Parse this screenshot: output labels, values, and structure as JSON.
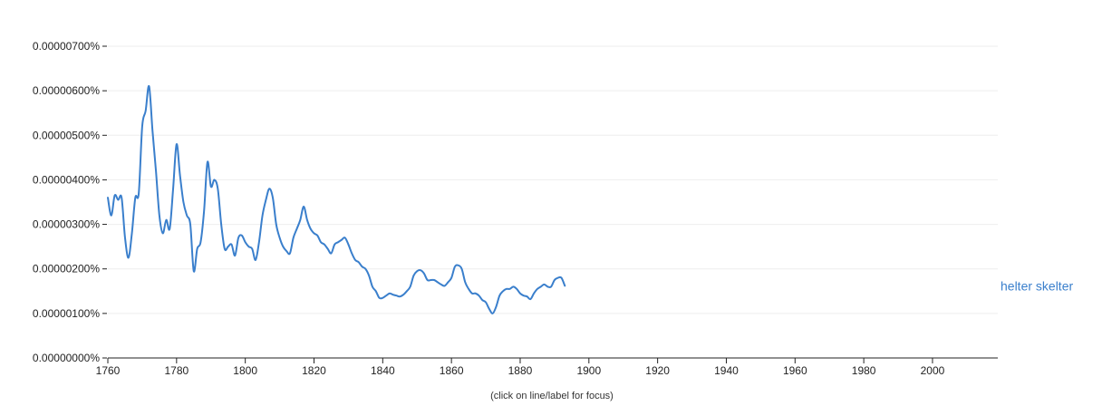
{
  "chart_data": {
    "type": "line",
    "xlim": [
      1760,
      2019
    ],
    "ylim": [
      0,
      7e-08
    ],
    "y_ticks": [
      {
        "value": 0,
        "label": "0.00000000%"
      },
      {
        "value": 1e-08,
        "label": "0.00000100%"
      },
      {
        "value": 2e-08,
        "label": "0.00000200%"
      },
      {
        "value": 3e-08,
        "label": "0.00000300%"
      },
      {
        "value": 4e-08,
        "label": "0.00000400%"
      },
      {
        "value": 5e-08,
        "label": "0.00000500%"
      },
      {
        "value": 6e-08,
        "label": "0.00000600%"
      },
      {
        "value": 7e-08,
        "label": "0.00000700%"
      }
    ],
    "x_ticks": [
      {
        "value": 1760,
        "label": "1760"
      },
      {
        "value": 1780,
        "label": "1780"
      },
      {
        "value": 1800,
        "label": "1800"
      },
      {
        "value": 1820,
        "label": "1820"
      },
      {
        "value": 1840,
        "label": "1840"
      },
      {
        "value": 1860,
        "label": "1860"
      },
      {
        "value": 1880,
        "label": "1880"
      },
      {
        "value": 1900,
        "label": "1900"
      },
      {
        "value": 1920,
        "label": "1920"
      },
      {
        "value": 1940,
        "label": "1940"
      },
      {
        "value": 1960,
        "label": "1960"
      },
      {
        "value": 1980,
        "label": "1980"
      },
      {
        "value": 2000,
        "label": "2000"
      }
    ],
    "grid": true,
    "series": [
      {
        "name": "helter skelter",
        "color": "#3a7fcc",
        "points": [
          [
            1760,
            3.6e-08
          ],
          [
            1761,
            3.2e-08
          ],
          [
            1762,
            3.65e-08
          ],
          [
            1763,
            3.55e-08
          ],
          [
            1764,
            3.6e-08
          ],
          [
            1765,
            2.7e-08
          ],
          [
            1766,
            2.25e-08
          ],
          [
            1767,
            2.8e-08
          ],
          [
            1768,
            3.6e-08
          ],
          [
            1769,
            3.7e-08
          ],
          [
            1770,
            5.2e-08
          ],
          [
            1771,
            5.55e-08
          ],
          [
            1772,
            6.1e-08
          ],
          [
            1773,
            5.1e-08
          ],
          [
            1774,
            4.2e-08
          ],
          [
            1775,
            3.2e-08
          ],
          [
            1776,
            2.8e-08
          ],
          [
            1777,
            3.1e-08
          ],
          [
            1778,
            2.9e-08
          ],
          [
            1779,
            3.8e-08
          ],
          [
            1780,
            4.8e-08
          ],
          [
            1781,
            4.1e-08
          ],
          [
            1782,
            3.5e-08
          ],
          [
            1783,
            3.2e-08
          ],
          [
            1784,
            3e-08
          ],
          [
            1785,
            1.95e-08
          ],
          [
            1786,
            2.45e-08
          ],
          [
            1787,
            2.6e-08
          ],
          [
            1788,
            3.3e-08
          ],
          [
            1789,
            4.4e-08
          ],
          [
            1790,
            3.85e-08
          ],
          [
            1791,
            4e-08
          ],
          [
            1792,
            3.8e-08
          ],
          [
            1793,
            3e-08
          ],
          [
            1794,
            2.45e-08
          ],
          [
            1795,
            2.5e-08
          ],
          [
            1796,
            2.55e-08
          ],
          [
            1797,
            2.3e-08
          ],
          [
            1798,
            2.7e-08
          ],
          [
            1799,
            2.75e-08
          ],
          [
            1800,
            2.6e-08
          ],
          [
            1801,
            2.5e-08
          ],
          [
            1802,
            2.45e-08
          ],
          [
            1803,
            2.2e-08
          ],
          [
            1804,
            2.6e-08
          ],
          [
            1805,
            3.2e-08
          ],
          [
            1806,
            3.55e-08
          ],
          [
            1807,
            3.8e-08
          ],
          [
            1808,
            3.6e-08
          ],
          [
            1809,
            3e-08
          ],
          [
            1810,
            2.7e-08
          ],
          [
            1811,
            2.5e-08
          ],
          [
            1812,
            2.4e-08
          ],
          [
            1813,
            2.35e-08
          ],
          [
            1814,
            2.7e-08
          ],
          [
            1815,
            2.9e-08
          ],
          [
            1816,
            3.1e-08
          ],
          [
            1817,
            3.4e-08
          ],
          [
            1818,
            3.1e-08
          ],
          [
            1819,
            2.9e-08
          ],
          [
            1820,
            2.8e-08
          ],
          [
            1821,
            2.75e-08
          ],
          [
            1822,
            2.6e-08
          ],
          [
            1823,
            2.55e-08
          ],
          [
            1824,
            2.45e-08
          ],
          [
            1825,
            2.35e-08
          ],
          [
            1826,
            2.55e-08
          ],
          [
            1827,
            2.6e-08
          ],
          [
            1828,
            2.65e-08
          ],
          [
            1829,
            2.7e-08
          ],
          [
            1830,
            2.55e-08
          ],
          [
            1831,
            2.35e-08
          ],
          [
            1832,
            2.2e-08
          ],
          [
            1833,
            2.15e-08
          ],
          [
            1834,
            2.05e-08
          ],
          [
            1835,
            2e-08
          ],
          [
            1836,
            1.85e-08
          ],
          [
            1837,
            1.6e-08
          ],
          [
            1838,
            1.5e-08
          ],
          [
            1839,
            1.35e-08
          ],
          [
            1840,
            1.35e-08
          ],
          [
            1841,
            1.4e-08
          ],
          [
            1842,
            1.45e-08
          ],
          [
            1843,
            1.42e-08
          ],
          [
            1844,
            1.4e-08
          ],
          [
            1845,
            1.38e-08
          ],
          [
            1846,
            1.42e-08
          ],
          [
            1847,
            1.5e-08
          ],
          [
            1848,
            1.6e-08
          ],
          [
            1849,
            1.85e-08
          ],
          [
            1850,
            1.95e-08
          ],
          [
            1851,
            1.97e-08
          ],
          [
            1852,
            1.9e-08
          ],
          [
            1853,
            1.75e-08
          ],
          [
            1854,
            1.75e-08
          ],
          [
            1855,
            1.75e-08
          ],
          [
            1856,
            1.7e-08
          ],
          [
            1857,
            1.65e-08
          ],
          [
            1858,
            1.62e-08
          ],
          [
            1859,
            1.7e-08
          ],
          [
            1860,
            1.8e-08
          ],
          [
            1861,
            2.05e-08
          ],
          [
            1862,
            2.08e-08
          ],
          [
            1863,
            2e-08
          ],
          [
            1864,
            1.7e-08
          ],
          [
            1865,
            1.55e-08
          ],
          [
            1866,
            1.45e-08
          ],
          [
            1867,
            1.45e-08
          ],
          [
            1868,
            1.4e-08
          ],
          [
            1869,
            1.3e-08
          ],
          [
            1870,
            1.25e-08
          ],
          [
            1871,
            1.1e-08
          ],
          [
            1872,
            1e-08
          ],
          [
            1873,
            1.15e-08
          ],
          [
            1874,
            1.4e-08
          ],
          [
            1875,
            1.5e-08
          ],
          [
            1876,
            1.55e-08
          ],
          [
            1877,
            1.55e-08
          ],
          [
            1878,
            1.6e-08
          ],
          [
            1879,
            1.55e-08
          ],
          [
            1880,
            1.45e-08
          ],
          [
            1881,
            1.4e-08
          ],
          [
            1882,
            1.38e-08
          ],
          [
            1883,
            1.32e-08
          ],
          [
            1884,
            1.45e-08
          ],
          [
            1885,
            1.55e-08
          ],
          [
            1886,
            1.6e-08
          ],
          [
            1887,
            1.65e-08
          ],
          [
            1888,
            1.6e-08
          ],
          [
            1889,
            1.6e-08
          ],
          [
            1890,
            1.75e-08
          ],
          [
            1891,
            1.8e-08
          ],
          [
            1892,
            1.8e-08
          ],
          [
            1893,
            1.62e-08
          ]
        ],
        "label": "helter skelter"
      }
    ]
  },
  "footer": {
    "note": "(click on line/label for focus)"
  }
}
